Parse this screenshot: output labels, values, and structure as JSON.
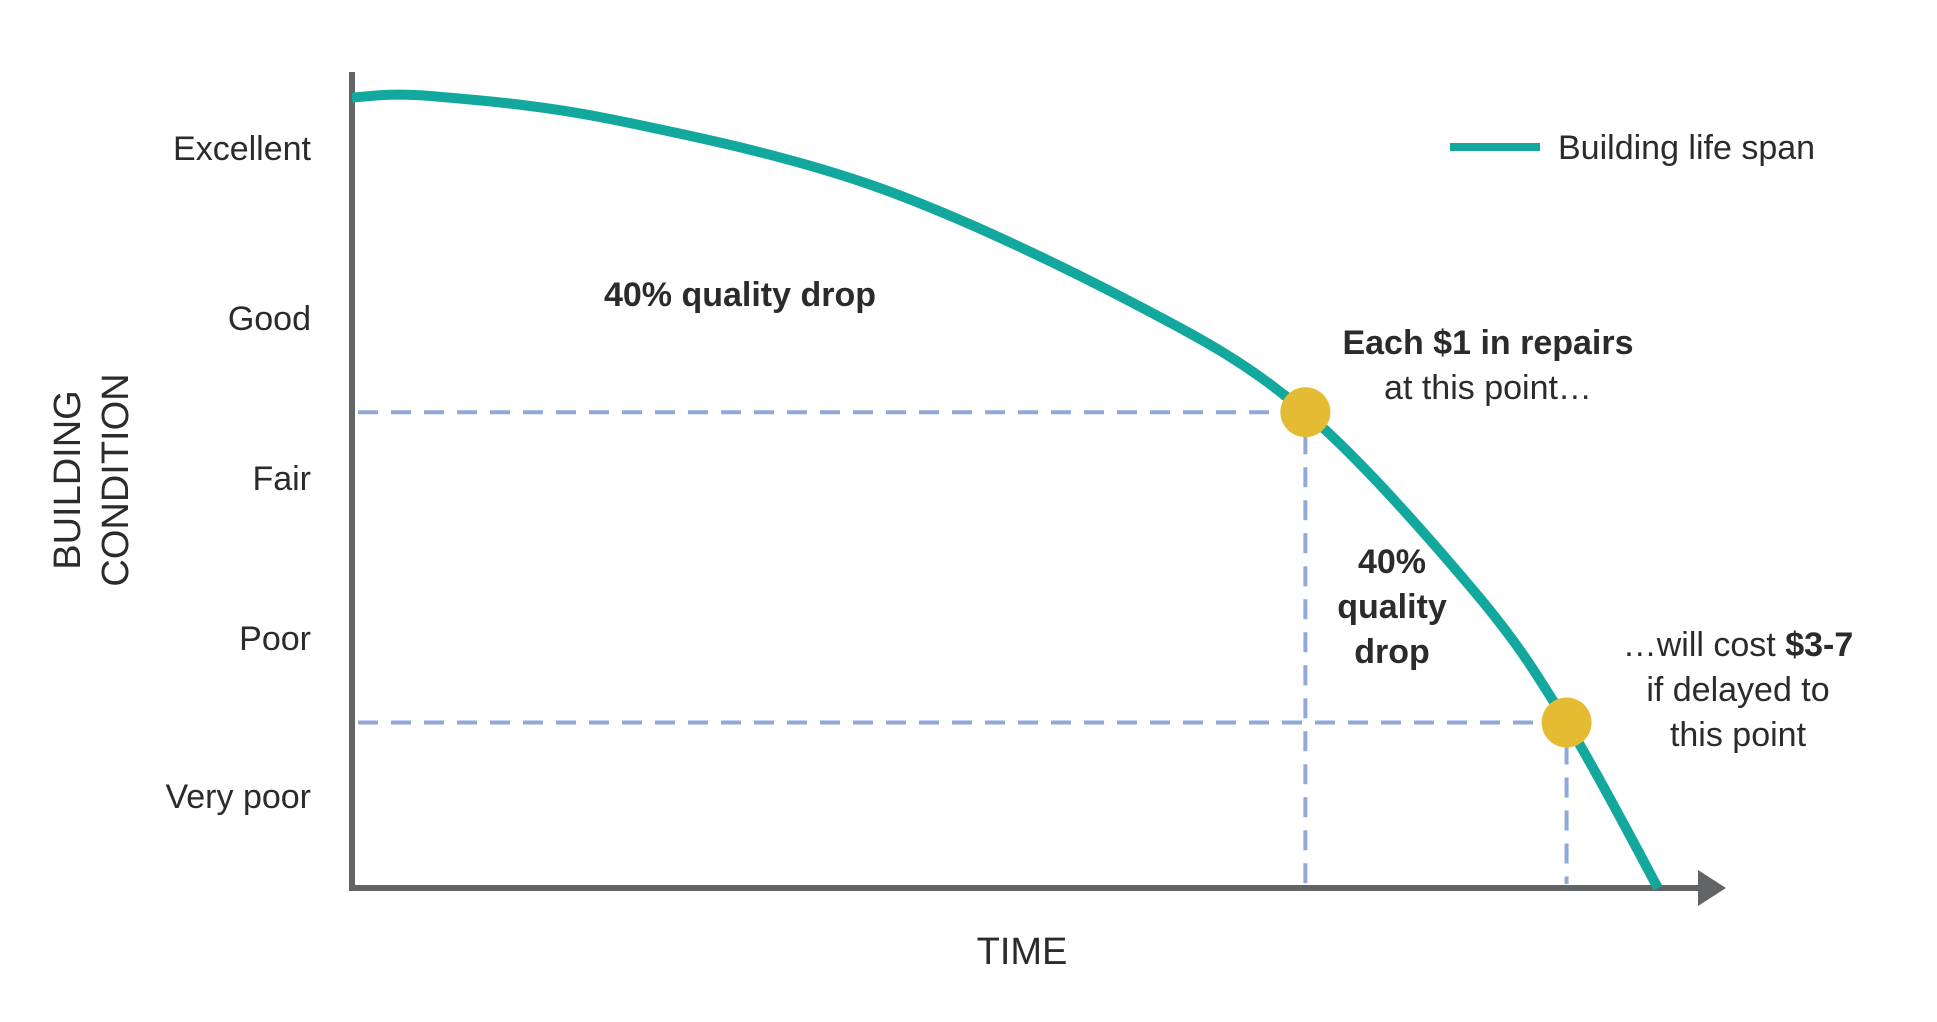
{
  "chart_data": {
    "type": "line",
    "title": "",
    "xlabel": "TIME",
    "ylabel_lines": [
      "BUILDING",
      "CONDITION"
    ],
    "y_tick_labels": [
      "Excellent",
      "Good",
      "Fair",
      "Poor",
      "Very poor"
    ],
    "series": [
      {
        "name": "Building life span",
        "color": "#13a89e",
        "x": [
          0,
          0.06,
          0.2,
          0.4,
          0.6,
          0.73,
          0.86,
          0.93,
          1.0
        ],
        "y": [
          5.35,
          5.36,
          5.2,
          4.75,
          3.95,
          3.22,
          2.0,
          1.12,
          0.0
        ]
      }
    ],
    "xlim": [
      0,
      1.05
    ],
    "ylim": [
      0,
      5.5
    ],
    "markers": [
      {
        "name": "repair-point",
        "x": 0.73,
        "y": 3.22,
        "color": "#e5bb33"
      },
      {
        "name": "delayed-point",
        "x": 0.93,
        "y": 1.12,
        "color": "#e5bb33"
      }
    ],
    "guide_color": "#8fa9d9",
    "axis_color": "#636466",
    "annotations": {
      "top_drop": "40% quality drop",
      "vertical_drop": [
        "40%",
        "quality",
        "drop"
      ],
      "repair_line1": "Each $1 in repairs",
      "repair_line2": "at this point…",
      "delay_line1_prefix": "…will cost ",
      "delay_line1_bold": "$3-7",
      "delay_line2": "if delayed to",
      "delay_line3": "this point"
    },
    "legend": {
      "label": "Building life span",
      "position": "top-right"
    }
  }
}
